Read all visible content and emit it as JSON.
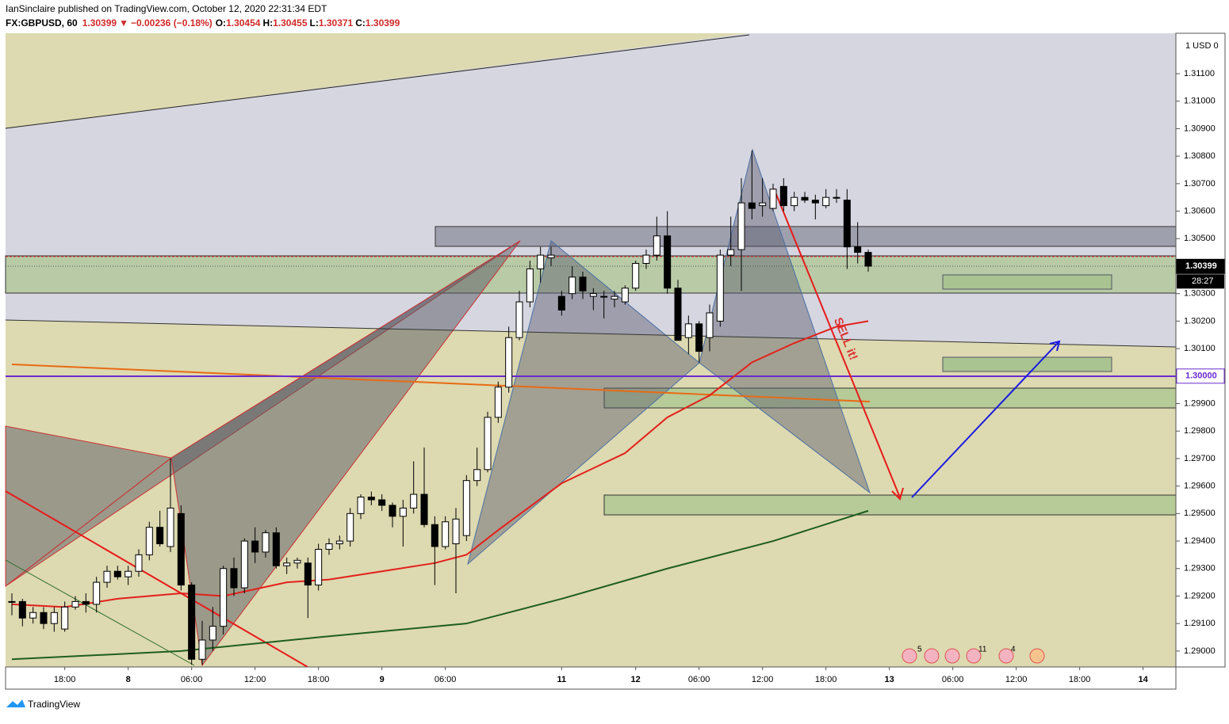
{
  "header": {
    "publisher": "IanSinclaire published on TradingView.com, October 12, 2020 22:31:34 EDT",
    "symbol": "FX:GBPUSD, 60",
    "last": "1.30399",
    "arrow": "▼",
    "change": "−0.00236 (−0.18%)",
    "o_label": "O:",
    "o": "1.30454",
    "h_label": "H:",
    "h": "1.30455",
    "l_label": "L:",
    "l": "1.30371",
    "c_label": "C:",
    "c": "1.30399"
  },
  "footer": {
    "brand": "TradingView"
  },
  "chart_data": {
    "type": "candlestick",
    "ohlc": [
      [
        1.2918,
        1.2921,
        1.2913,
        1.2918
      ],
      [
        1.2918,
        1.2919,
        1.2909,
        1.2912
      ],
      [
        1.2912,
        1.2916,
        1.291,
        1.2914
      ],
      [
        1.2914,
        1.2916,
        1.2908,
        1.291
      ],
      [
        1.291,
        1.2916,
        1.2907,
        1.2914
      ],
      [
        1.2908,
        1.2918,
        1.2907,
        1.2916
      ],
      [
        1.2916,
        1.292,
        1.2915,
        1.2918
      ],
      [
        1.2918,
        1.2921,
        1.2914,
        1.2917
      ],
      [
        1.2917,
        1.2927,
        1.2914,
        1.2925
      ],
      [
        1.2925,
        1.2931,
        1.2923,
        1.2929
      ],
      [
        1.2929,
        1.2931,
        1.2926,
        1.2927
      ],
      [
        1.2927,
        1.2931,
        1.2924,
        1.2929
      ],
      [
        1.2929,
        1.2937,
        1.2927,
        1.2935
      ],
      [
        1.2935,
        1.2947,
        1.2933,
        1.2945
      ],
      [
        1.2945,
        1.2951,
        1.2938,
        1.2939
      ],
      [
        1.2938,
        1.297,
        1.2936,
        1.2952
      ],
      [
        1.295,
        1.2953,
        1.2922,
        1.2924
      ],
      [
        1.2924,
        1.2925,
        1.2895,
        1.2897
      ],
      [
        1.2897,
        1.2911,
        1.2895,
        1.2904
      ],
      [
        1.2904,
        1.2916,
        1.29,
        1.2909
      ],
      [
        1.2909,
        1.2931,
        1.2906,
        1.293
      ],
      [
        1.293,
        1.2934,
        1.292,
        1.2923
      ],
      [
        1.2923,
        1.2941,
        1.2921,
        1.294
      ],
      [
        1.294,
        1.2945,
        1.2932,
        1.2936
      ],
      [
        1.2936,
        1.2944,
        1.2934,
        1.2943
      ],
      [
        1.2943,
        1.2945,
        1.293,
        1.2931
      ],
      [
        1.2931,
        1.2934,
        1.2928,
        1.2932
      ],
      [
        1.2932,
        1.2934,
        1.293,
        1.2933
      ],
      [
        1.2932,
        1.2934,
        1.2912,
        1.2924
      ],
      [
        1.2924,
        1.2939,
        1.2922,
        1.2937
      ],
      [
        1.2937,
        1.2941,
        1.2935,
        1.2939
      ],
      [
        1.2939,
        1.2942,
        1.2937,
        1.294
      ],
      [
        1.294,
        1.2952,
        1.2938,
        1.295
      ],
      [
        1.295,
        1.2957,
        1.2948,
        1.2956
      ],
      [
        1.2956,
        1.2958,
        1.2953,
        1.2955
      ],
      [
        1.2955,
        1.2957,
        1.2951,
        1.2953
      ],
      [
        1.2953,
        1.2954,
        1.2945,
        1.2949
      ],
      [
        1.2949,
        1.2955,
        1.2938,
        1.2952
      ],
      [
        1.2952,
        1.2969,
        1.295,
        1.2957
      ],
      [
        1.2957,
        1.2974,
        1.2945,
        1.2946
      ],
      [
        1.2946,
        1.2949,
        1.2924,
        1.2938
      ],
      [
        1.2938,
        1.2949,
        1.2937,
        1.2947
      ],
      [
        1.2939,
        1.2952,
        1.2921,
        1.2948
      ],
      [
        1.2942,
        1.2964,
        1.294,
        1.2962
      ],
      [
        1.2962,
        1.2974,
        1.296,
        1.2966
      ],
      [
        1.2966,
        1.2987,
        1.2965,
        1.2985
      ],
      [
        1.2985,
        1.2998,
        1.2983,
        1.2996
      ],
      [
        1.2996,
        1.3018,
        1.2994,
        1.3014
      ],
      [
        1.3014,
        1.3031,
        1.3013,
        1.3027
      ],
      [
        1.3027,
        1.3042,
        1.3025,
        1.3039
      ],
      [
        1.3039,
        1.3047,
        1.3034,
        1.3044
      ],
      [
        1.3043,
        1.3047,
        1.304,
        1.3044
      ],
      [
        1.3029,
        1.3031,
        1.3022,
        1.3024
      ],
      [
        1.303,
        1.304,
        1.3028,
        1.3036
      ],
      [
        1.3036,
        1.3038,
        1.3028,
        1.3031
      ],
      [
        1.3029,
        1.3032,
        1.3024,
        1.303
      ],
      [
        1.3029,
        1.3031,
        1.3021,
        1.3029
      ],
      [
        1.3028,
        1.3031,
        1.3025,
        1.3029
      ],
      [
        1.3027,
        1.3033,
        1.3026,
        1.3032
      ],
      [
        1.3032,
        1.3042,
        1.3031,
        1.3041
      ],
      [
        1.3041,
        1.3046,
        1.3039,
        1.3044
      ],
      [
        1.3044,
        1.3058,
        1.3042,
        1.3051
      ],
      [
        1.3051,
        1.306,
        1.303,
        1.3032
      ],
      [
        1.3032,
        1.3035,
        1.3013,
        1.3013
      ],
      [
        1.3014,
        1.3022,
        1.3008,
        1.3019
      ],
      [
        1.3019,
        1.302,
        1.3005,
        1.3009
      ],
      [
        1.3014,
        1.3026,
        1.3009,
        1.3023
      ],
      [
        1.302,
        1.3046,
        1.3018,
        1.3044
      ],
      [
        1.3044,
        1.3058,
        1.304,
        1.3046
      ],
      [
        1.3046,
        1.3072,
        1.3031,
        1.3063
      ],
      [
        1.3063,
        1.3082,
        1.3057,
        1.3061
      ],
      [
        1.3062,
        1.3072,
        1.3058,
        1.3063
      ],
      [
        1.3061,
        1.307,
        1.306,
        1.3068
      ],
      [
        1.3069,
        1.3072,
        1.306,
        1.3062
      ],
      [
        1.3062,
        1.3067,
        1.306,
        1.3065
      ],
      [
        1.3065,
        1.3067,
        1.3063,
        1.3064
      ],
      [
        1.3064,
        1.3066,
        1.3057,
        1.3063
      ],
      [
        1.3062,
        1.3068,
        1.3061,
        1.3065
      ],
      [
        1.3065,
        1.3068,
        1.3063,
        1.3065
      ],
      [
        1.3064,
        1.3068,
        1.3039,
        1.3047
      ],
      [
        1.3047,
        1.3056,
        1.3041,
        1.3045
      ],
      [
        1.3045,
        1.3046,
        1.3038,
        1.304
      ]
    ],
    "lines": [
      {
        "color": "#e3201b",
        "x": [
          0,
          5,
          10,
          16,
          20,
          26,
          30,
          35,
          40,
          43,
          46,
          52,
          58,
          62,
          66,
          70,
          74,
          78,
          81
        ],
        "values": [
          1.2917,
          1.2916,
          1.2919,
          1.2921,
          1.292,
          1.2925,
          1.2926,
          1.2929,
          1.2932,
          1.2935,
          1.2944,
          1.2961,
          1.2972,
          1.2985,
          1.2993,
          1.3005,
          1.3012,
          1.3018,
          1.302
        ]
      },
      {
        "color": "#1e5e1e",
        "x": [
          0,
          16,
          29,
          43,
          52,
          62,
          72,
          81
        ],
        "values": [
          1.2897,
          1.29,
          1.2905,
          1.291,
          1.2919,
          1.293,
          1.294,
          1.2951
        ]
      }
    ],
    "xlim": [
      -0.6,
      110.1
    ],
    "ylim": [
      1.28942,
      1.31247
    ],
    "xticks": [
      {
        "value": 5,
        "label": "18:00"
      },
      {
        "value": 11,
        "label": "8"
      },
      {
        "value": 17,
        "label": "06:00"
      },
      {
        "value": 23,
        "label": "12:00"
      },
      {
        "value": 29,
        "label": "18:00"
      },
      {
        "value": 35,
        "label": "9"
      },
      {
        "value": 41,
        "label": "06:00"
      },
      {
        "value": 52,
        "label": "11"
      },
      {
        "value": 59,
        "label": "12"
      },
      {
        "value": 65,
        "label": "06:00"
      },
      {
        "value": 71,
        "label": "12:00"
      },
      {
        "value": 77,
        "label": "18:00"
      },
      {
        "value": 83,
        "label": "13"
      },
      {
        "value": 89,
        "label": "06:00"
      },
      {
        "value": 95,
        "label": "12:00"
      },
      {
        "value": 101,
        "label": "18:00"
      },
      {
        "value": 107,
        "label": "14"
      }
    ],
    "yticks": [
      {
        "value": 1.29,
        "label": "1.29000"
      },
      {
        "value": 1.291,
        "label": "1.29100"
      },
      {
        "value": 1.292,
        "label": "1.29200"
      },
      {
        "value": 1.293,
        "label": "1.29300"
      },
      {
        "value": 1.294,
        "label": "1.29400"
      },
      {
        "value": 1.295,
        "label": "1.29500"
      },
      {
        "value": 1.296,
        "label": "1.29600"
      },
      {
        "value": 1.297,
        "label": "1.29700"
      },
      {
        "value": 1.298,
        "label": "1.29800"
      },
      {
        "value": 1.299,
        "label": "1.29900"
      },
      {
        "value": 1.3,
        "label": "1.30000"
      },
      {
        "value": 1.301,
        "label": "1.30100"
      },
      {
        "value": 1.302,
        "label": "1.30200"
      },
      {
        "value": 1.303,
        "label": "1.30300"
      },
      {
        "value": 1.304,
        "label": "1.30400"
      },
      {
        "value": 1.305,
        "label": "1.30500"
      },
      {
        "value": 1.306,
        "label": "1.30600"
      },
      {
        "value": 1.307,
        "label": "1.30700"
      },
      {
        "value": 1.308,
        "label": "1.30800"
      },
      {
        "value": 1.309,
        "label": "1.30900"
      },
      {
        "value": 1.31,
        "label": "1.31000"
      },
      {
        "value": 1.311,
        "label": "1.31100"
      }
    ],
    "price_labels": [
      {
        "value": 1.30399,
        "label": "1.30399"
      },
      {
        "value": 1.3,
        "label": "1.30000"
      }
    ],
    "countdown": "28:27",
    "axis_unit": "1 USD 0",
    "annotation": "SELL it!",
    "event_counts": [
      "5",
      "11",
      "4"
    ]
  }
}
